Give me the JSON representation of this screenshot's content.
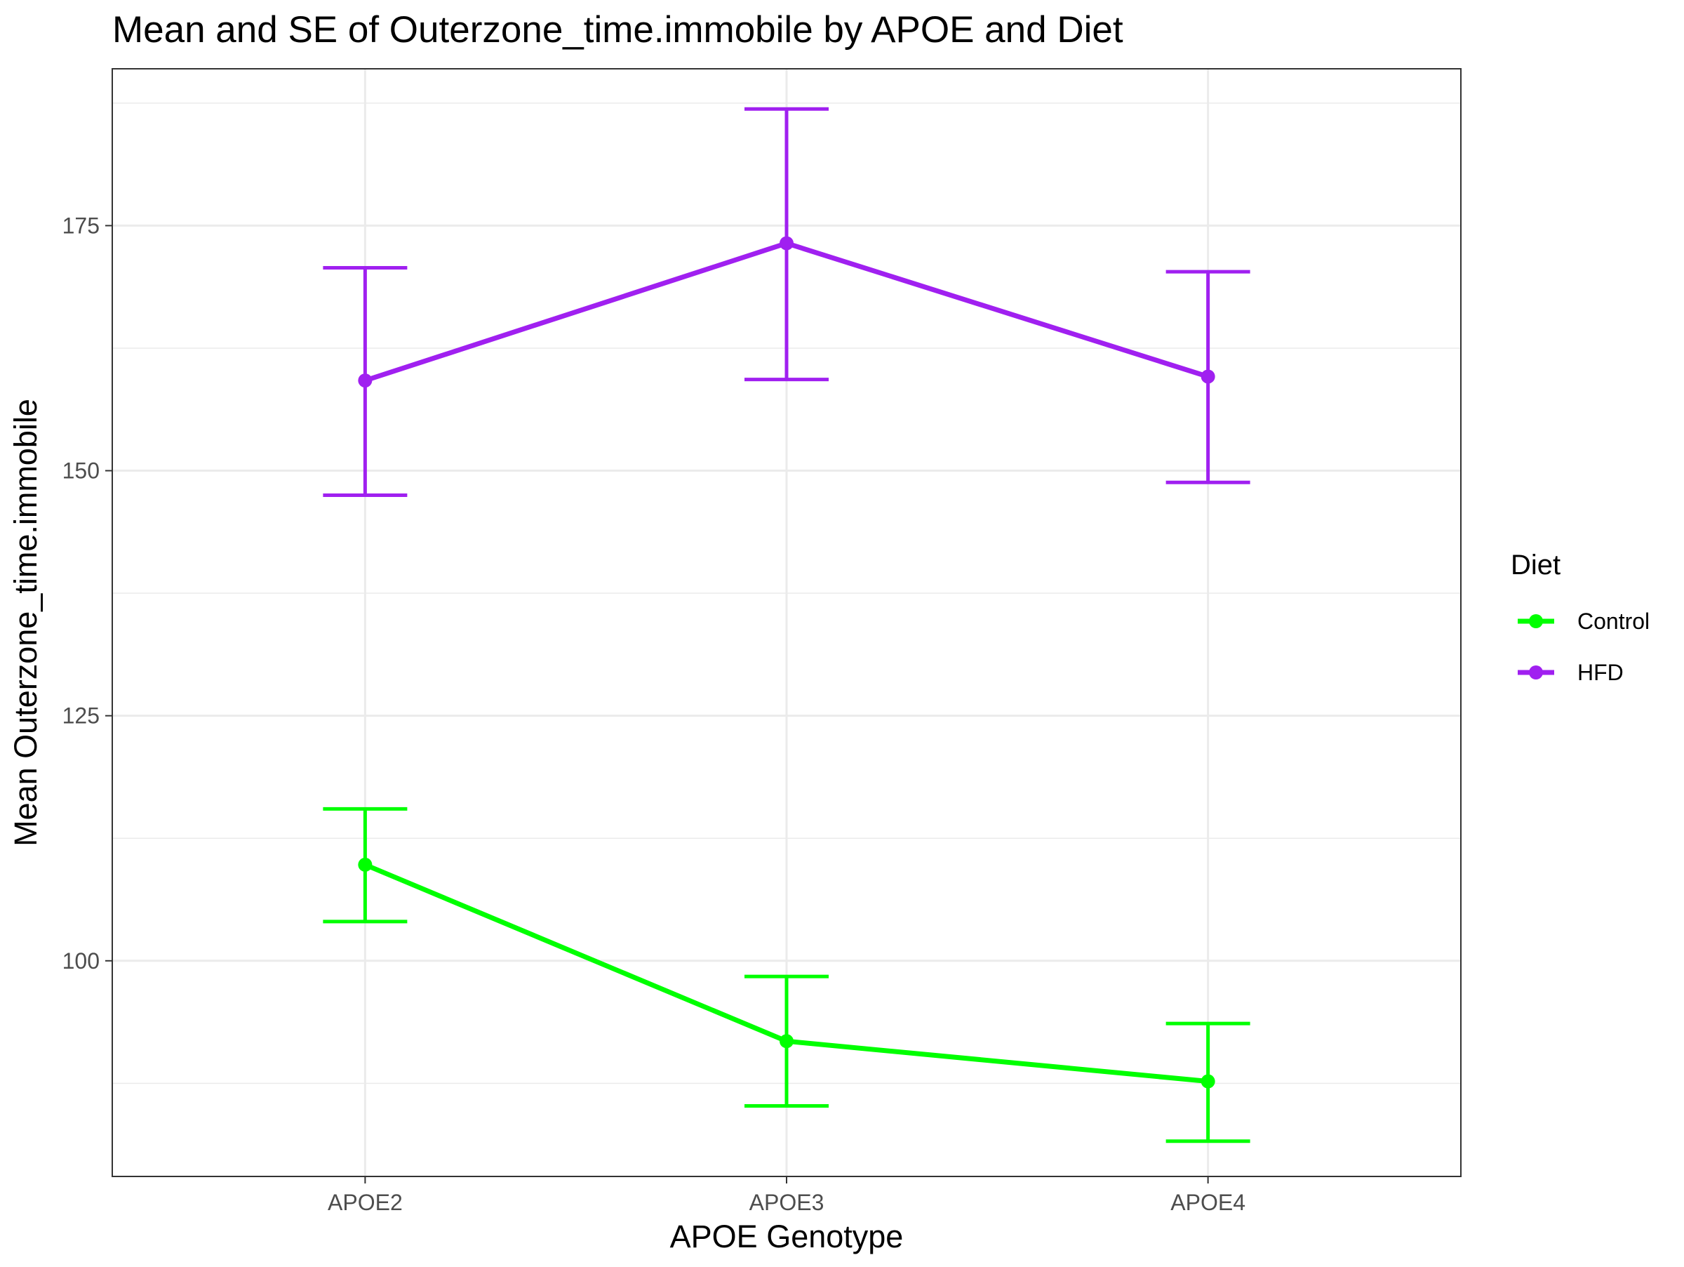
{
  "chart_data": {
    "type": "line",
    "title": "Mean and SE of Outerzone_time.immobile by APOE and Diet",
    "xlabel": "APOE Genotype",
    "ylabel": "Mean Outerzone_time.immobile",
    "categories": [
      "APOE2",
      "APOE3",
      "APOE4"
    ],
    "ylim": [
      78,
      191
    ],
    "yticks": [
      100,
      125,
      150,
      175
    ],
    "ytick_labels": [
      "100",
      "125",
      "150",
      "175"
    ],
    "grid": true,
    "legend": {
      "title": "Diet",
      "position": "right"
    },
    "series": [
      {
        "name": "Control",
        "color": "#00ff00",
        "values": [
          109.8,
          91.8,
          87.7
        ],
        "se_lower": [
          104.0,
          85.2,
          81.6
        ],
        "se_upper": [
          115.5,
          98.4,
          93.6
        ]
      },
      {
        "name": "HFD",
        "color": "#a020f0",
        "values": [
          159.2,
          173.2,
          159.6
        ],
        "se_lower": [
          147.5,
          159.3,
          148.8
        ],
        "se_upper": [
          170.7,
          186.9,
          170.3
        ]
      }
    ]
  }
}
